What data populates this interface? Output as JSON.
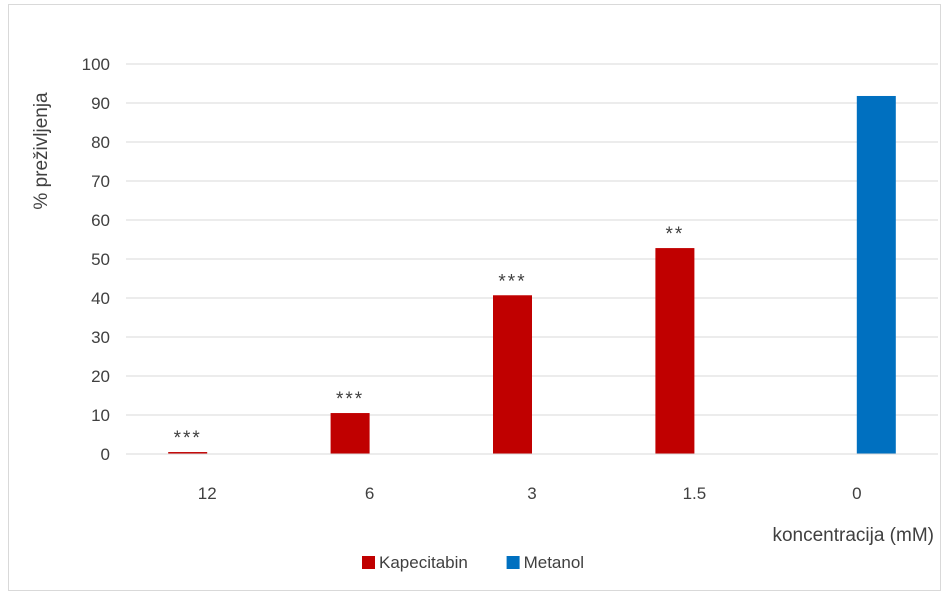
{
  "chart_data": {
    "type": "bar",
    "categories": [
      "12",
      "6",
      "3",
      "1.5",
      "0"
    ],
    "series": [
      {
        "name": "Kapecitabin",
        "color": "#C00000",
        "values": [
          0.5,
          10.5,
          40.7,
          52.8,
          null
        ]
      },
      {
        "name": "Metanol",
        "color": "#0070C0",
        "values": [
          null,
          null,
          null,
          null,
          91.8
        ]
      }
    ],
    "annotations": [
      "***",
      "***",
      "***",
      "**",
      ""
    ],
    "ylabel": "% preživljenja",
    "xlabel": "koncentracija (mM)",
    "ylim": [
      0,
      100
    ],
    "yticks": [
      0,
      10,
      20,
      30,
      40,
      50,
      60,
      70,
      80,
      90,
      100
    ],
    "grid": true,
    "legend": "bottom"
  }
}
